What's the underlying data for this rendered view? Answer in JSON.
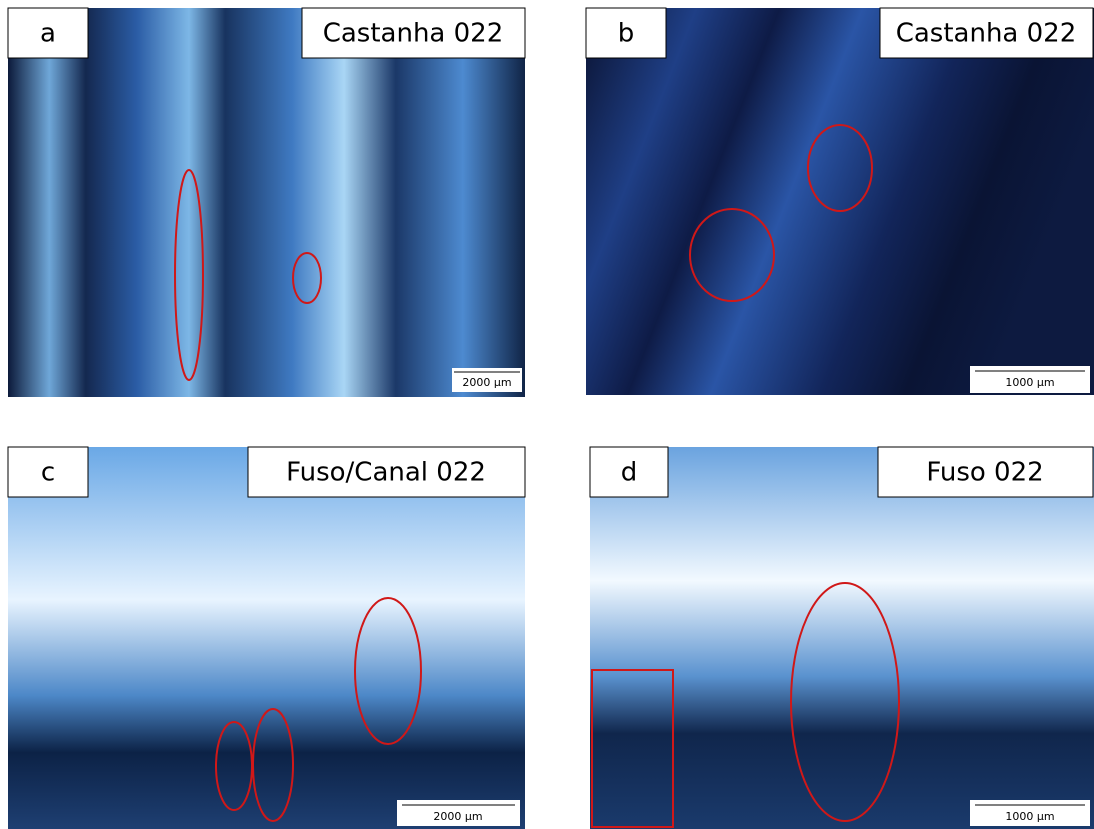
{
  "panels": [
    {
      "letter": "a",
      "title": "Castanha 022",
      "scale": "2000 µm"
    },
    {
      "letter": "b",
      "title": "Castanha 022",
      "scale": "1000 µm"
    },
    {
      "letter": "c",
      "title": "Fuso/Canal 022",
      "scale": "2000 µm"
    },
    {
      "letter": "d",
      "title": "Fuso 022",
      "scale": "1000 µm"
    }
  ]
}
